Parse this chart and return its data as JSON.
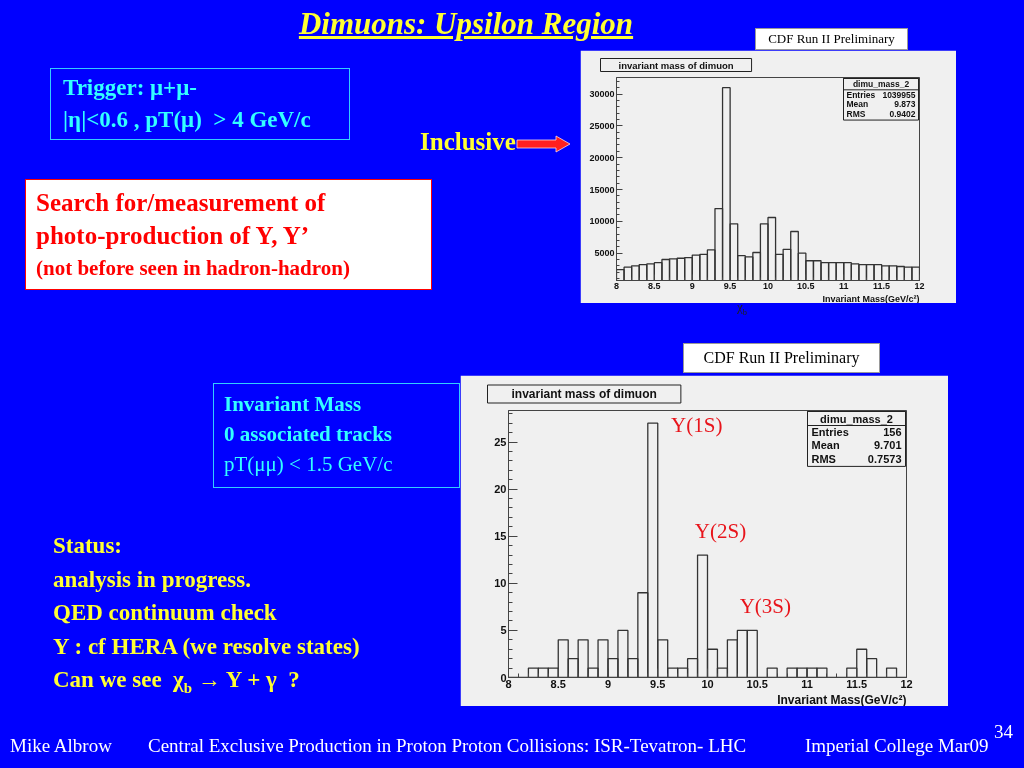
{
  "chart_data": [
    {
      "type": "other",
      "title": "Dimuons: Upsilon Region",
      "annotations": [
        "Trigger: μ+μ-\n|η|<0.6 , pT(μ)  > 4 GeV/c",
        "Inclusive",
        "Search for/measurement of\nphoto-production of Y, Y’\n(not before seen in hadron-hadron)",
        "χ$_{b}$",
        "Invariant Mass\n0 associated tracks\npT(μμ) < 1.5 GeV/c",
        "Status:\nanalysis in progress.\nQED continuum check\nY : cf HERA (we resolve states)\nCan we see  χ$_{b}$ → Y + γ  ?",
        "Mike Albrow",
        "Central Exclusive Production in Proton Proton Collisions: ISR-Tevatron- LHC",
        "Imperial College Mar09",
        "34"
      ]
    },
    {
      "type": "histogram",
      "title": "invariant mass of dimuon",
      "xlabel": "Invariant Mass(GeV/c²)",
      "color": "#333333",
      "bins": [
        8,
        8.1,
        8.2,
        8.3,
        8.4,
        8.5,
        8.6,
        8.7,
        8.8,
        8.9,
        9,
        9.1,
        9.2,
        9.3,
        9.4,
        9.5,
        9.6,
        9.7,
        9.8,
        9.9,
        10,
        10.1,
        10.2,
        10.3,
        10.4,
        10.5,
        10.6,
        10.7,
        10.8,
        10.9,
        11,
        11.1,
        11.2,
        11.3,
        11.4,
        11.5,
        11.6,
        11.7,
        11.8,
        11.9,
        12
      ],
      "values": [
        2400,
        2800,
        3000,
        3200,
        3300,
        3500,
        4000,
        4100,
        4200,
        4300,
        4700,
        4800,
        5500,
        12000,
        31000,
        9600,
        4600,
        4400,
        5100,
        9600,
        10600,
        4800,
        5600,
        8400,
        5000,
        3800,
        3800,
        3500,
        3500,
        3500,
        3500,
        3300,
        3200,
        3200,
        3200,
        3000,
        3000,
        2900,
        2800,
        2800
      ],
      "xlim": [
        8,
        12
      ],
      "xticks": [
        8,
        8.5,
        9,
        9.5,
        10,
        10.5,
        11,
        11.5,
        12
      ],
      "ylim": [
        700,
        32600
      ],
      "yticks": [
        5000,
        10000,
        15000,
        20000,
        25000,
        30000
      ],
      "annotations": [
        "CDF Run II Preliminary",
        "dimu_mass_2",
        "Entries 1039955",
        "Mean 9.873",
        "RMS 0.9402"
      ]
    },
    {
      "type": "histogram",
      "title": "invariant mass of dimuon",
      "xlabel": "Invariant Mass(GeV/c²)",
      "color": "#333333",
      "bins": [
        8,
        8.1,
        8.2,
        8.3,
        8.4,
        8.5,
        8.6,
        8.7,
        8.8,
        8.9,
        9,
        9.1,
        9.2,
        9.3,
        9.4,
        9.5,
        9.6,
        9.7,
        9.8,
        9.9,
        10,
        10.1,
        10.2,
        10.3,
        10.4,
        10.5,
        10.6,
        10.7,
        10.8,
        10.9,
        11,
        11.1,
        11.2,
        11.3,
        11.4,
        11.5,
        11.6,
        11.7,
        11.8,
        11.9,
        12
      ],
      "values": [
        0,
        0,
        1,
        1,
        1,
        4,
        2,
        4,
        1,
        4,
        2,
        5,
        2,
        9,
        27,
        4,
        1,
        1,
        2,
        13,
        3,
        1,
        4,
        5,
        5,
        0,
        1,
        0,
        1,
        1,
        1,
        1,
        0,
        0,
        1,
        3,
        2,
        0,
        1,
        0
      ],
      "xlim": [
        8,
        12
      ],
      "xticks": [
        8,
        8.5,
        9,
        9.5,
        10,
        10.5,
        11,
        11.5,
        12
      ],
      "ylim": [
        0,
        28.35
      ],
      "yticks": [
        0,
        5,
        10,
        15,
        20,
        25
      ],
      "annotations": [
        "CDF Run II Preliminary",
        "dimu_mass_2",
        "Entries 156",
        "Mean 9.701",
        "RMS 0.7573",
        {
          "text": "Y(1S)",
          "x": 9.45,
          "y": 27
        },
        {
          "text": "Y(2S)",
          "x": 9.95,
          "y": 13
        },
        {
          "text": "Y(3S)",
          "x": 10.4,
          "y": 5
        }
      ]
    }
  ]
}
